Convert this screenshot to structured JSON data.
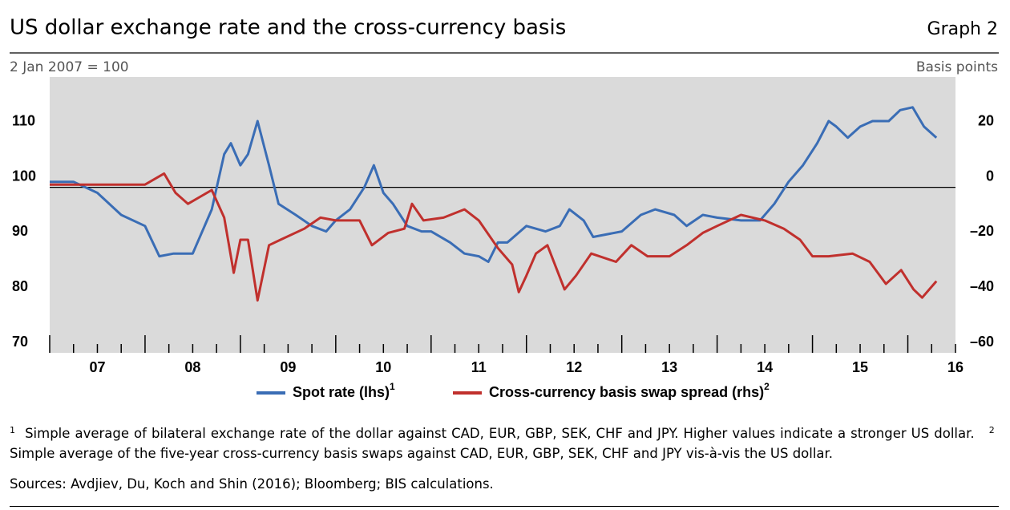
{
  "chart_data": {
    "type": "line",
    "title": "US dollar exchange rate and the cross-currency basis",
    "graph_label": "Graph 2",
    "ylabel": "2 Jan 2007 = 100",
    "y2label": "Basis points",
    "xlim": [
      2007,
      2016.5
    ],
    "xticks": [
      {
        "value": 2007.5,
        "label": "07"
      },
      {
        "value": 2008.5,
        "label": "08"
      },
      {
        "value": 2009.5,
        "label": "09"
      },
      {
        "value": 2010.5,
        "label": "10"
      },
      {
        "value": 2011.5,
        "label": "11"
      },
      {
        "value": 2012.5,
        "label": "12"
      },
      {
        "value": 2013.5,
        "label": "13"
      },
      {
        "value": 2014.5,
        "label": "14"
      },
      {
        "value": 2015.5,
        "label": "15"
      },
      {
        "value": 2016.5,
        "label": "16"
      }
    ],
    "year_ticks": [
      2007,
      2008,
      2009,
      2010,
      2011,
      2012,
      2013,
      2014,
      2015,
      2016
    ],
    "ylim": [
      70,
      120
    ],
    "yticks": [
      70,
      80,
      90,
      100,
      110
    ],
    "y2lim": [
      -60,
      40
    ],
    "y2ticks": [
      {
        "value": -60,
        "label": "–60"
      },
      {
        "value": -40,
        "label": "–40"
      },
      {
        "value": -20,
        "label": "–20"
      },
      0,
      20
    ],
    "hline": 100,
    "grid": false,
    "series": [
      {
        "name": "Spot rate (lhs)",
        "note": "1",
        "color": "#3a6db5",
        "x": [
          2007.0,
          2007.25,
          2007.5,
          2007.75,
          2008.0,
          2008.15,
          2008.3,
          2008.5,
          2008.7,
          2008.83,
          2008.9,
          2009.0,
          2009.08,
          2009.18,
          2009.3,
          2009.4,
          2009.58,
          2009.75,
          2009.9,
          2010.0,
          2010.15,
          2010.3,
          2010.4,
          2010.5,
          2010.6,
          2010.75,
          2010.9,
          2011.0,
          2011.2,
          2011.35,
          2011.5,
          2011.6,
          2011.7,
          2011.8,
          2012.0,
          2012.2,
          2012.35,
          2012.45,
          2012.6,
          2012.7,
          2013.0,
          2013.2,
          2013.35,
          2013.55,
          2013.68,
          2013.85,
          2014.0,
          2014.25,
          2014.45,
          2014.6,
          2014.75,
          2014.9,
          2015.05,
          2015.17,
          2015.25,
          2015.37,
          2015.5,
          2015.63,
          2015.8,
          2015.92,
          2016.05,
          2016.17,
          2016.3
        ],
        "values": [
          101,
          101,
          99,
          95,
          93,
          87.5,
          88,
          88,
          96,
          106,
          108,
          104,
          106,
          112,
          104,
          97,
          95,
          93,
          92,
          94,
          96,
          100,
          104,
          99,
          97,
          93,
          92,
          92,
          90,
          88,
          87.5,
          86.5,
          90,
          90,
          93,
          92,
          93,
          96,
          94,
          91,
          92,
          95,
          96,
          95,
          93,
          95,
          94.5,
          94,
          94,
          97,
          101,
          104,
          108,
          112,
          111,
          109,
          111,
          112,
          112,
          114,
          114.5,
          111,
          109
        ]
      },
      {
        "name": "Cross-currency basis swap spread (rhs)",
        "note": "2",
        "color": "#c0302d",
        "axis": "y2",
        "x": [
          2007.0,
          2007.5,
          2008.0,
          2008.2,
          2008.32,
          2008.45,
          2008.7,
          2008.83,
          2008.93,
          2009.0,
          2009.08,
          2009.18,
          2009.3,
          2009.42,
          2009.67,
          2009.84,
          2010.0,
          2010.25,
          2010.38,
          2010.55,
          2010.72,
          2010.8,
          2010.92,
          2011.13,
          2011.35,
          2011.5,
          2011.7,
          2011.85,
          2011.92,
          2012.0,
          2012.1,
          2012.22,
          2012.4,
          2012.52,
          2012.68,
          2012.94,
          2013.1,
          2013.27,
          2013.5,
          2013.68,
          2013.85,
          2014.0,
          2014.25,
          2014.5,
          2014.7,
          2014.87,
          2015.0,
          2015.17,
          2015.42,
          2015.6,
          2015.77,
          2015.93,
          2016.06,
          2016.15,
          2016.3
        ],
        "values": [
          1,
          1,
          1,
          5,
          -2,
          -6,
          -1,
          -11,
          -31,
          -19,
          -19,
          -41,
          -21,
          -19,
          -15,
          -11,
          -12,
          -12,
          -21,
          -16.5,
          -15,
          -6,
          -12,
          -11,
          -8,
          -12,
          -22,
          -28,
          -38,
          -32,
          -24,
          -21,
          -37,
          -32,
          -24,
          -27,
          -21,
          -25,
          -25,
          -21,
          -16.5,
          -14,
          -10,
          -12,
          -15,
          -19,
          -25,
          -25,
          -24,
          -27,
          -35,
          -30,
          -37,
          -40,
          -34
        ]
      }
    ]
  },
  "footnotes": [
    {
      "mark": "1",
      "text": "Simple average of bilateral exchange rate of the dollar against CAD, EUR, GBP, SEK, CHF and JPY. Higher values indicate a stronger US dollar."
    },
    {
      "mark": "2",
      "text": "Simple average of the five-year cross-currency basis swaps against CAD, EUR, GBP, SEK, CHF and JPY vis-à-vis the US dollar."
    }
  ],
  "sources": "Sources: Avdjiev, Du, Koch and Shin (2016); Bloomberg; BIS calculations."
}
